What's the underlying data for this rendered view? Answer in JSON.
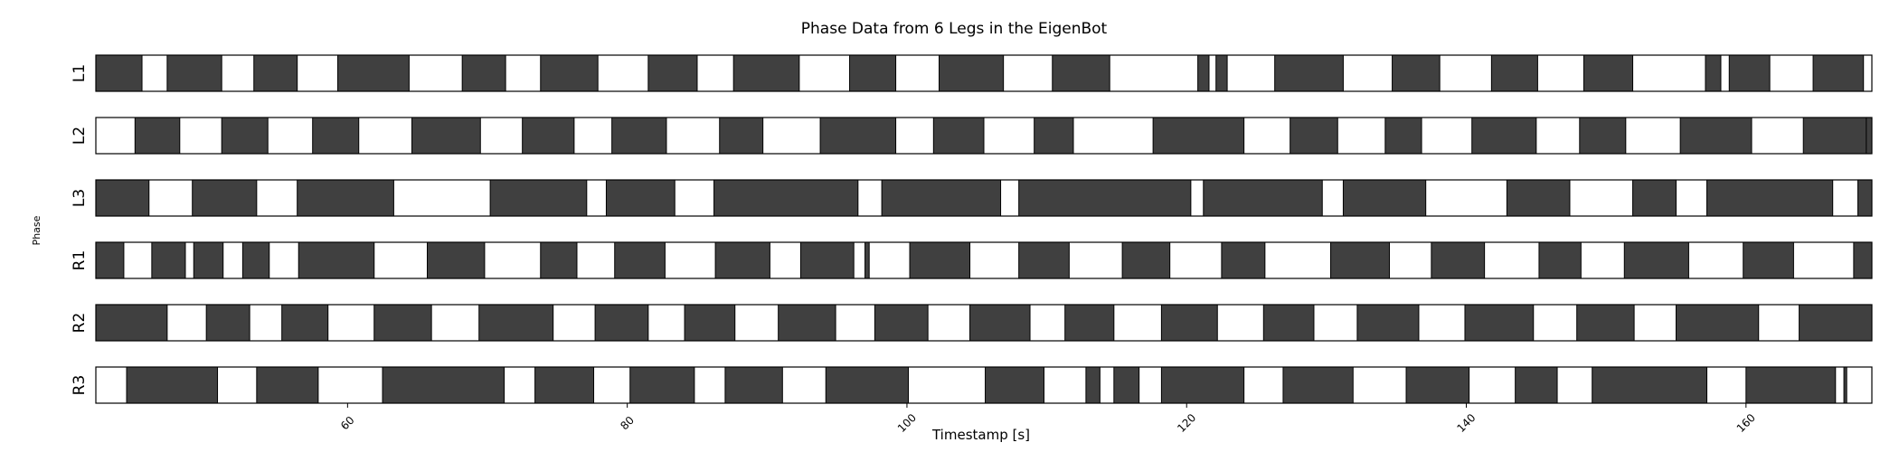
{
  "chart_data": {
    "type": "broken_barh",
    "title": "Phase Data from 6 Legs in the EigenBot",
    "xlabel": "Timestamp [s]",
    "ylabel": "Phase",
    "xlim": [
      42,
      169
    ],
    "xticks": [
      60,
      80,
      100,
      120,
      140,
      160
    ],
    "stance_color": "#404040",
    "swing_color": "#ffffff",
    "rows": [
      {
        "name": "L1",
        "stance": [
          [
            42.0,
            45.3
          ],
          [
            47.1,
            51.0
          ],
          [
            53.3,
            56.4
          ],
          [
            59.3,
            64.4
          ],
          [
            68.2,
            71.3
          ],
          [
            73.8,
            77.9
          ],
          [
            81.5,
            85.0
          ],
          [
            87.6,
            92.3
          ],
          [
            95.9,
            99.2
          ],
          [
            102.3,
            106.9
          ],
          [
            110.4,
            114.5
          ],
          [
            120.8,
            121.6
          ],
          [
            122.1,
            122.9
          ],
          [
            126.3,
            131.2
          ],
          [
            134.7,
            138.1
          ],
          [
            141.8,
            145.1
          ],
          [
            148.4,
            151.9
          ],
          [
            157.1,
            158.2
          ],
          [
            158.8,
            161.7
          ],
          [
            164.8,
            168.4
          ]
        ]
      },
      {
        "name": "L2",
        "stance": [
          [
            44.8,
            48.0
          ],
          [
            51.0,
            54.3
          ],
          [
            57.5,
            60.8
          ],
          [
            64.6,
            69.5
          ],
          [
            72.5,
            76.2
          ],
          [
            78.9,
            82.8
          ],
          [
            86.6,
            89.7
          ],
          [
            93.8,
            99.2
          ],
          [
            101.9,
            105.5
          ],
          [
            109.1,
            111.9
          ],
          [
            117.6,
            124.1
          ],
          [
            127.4,
            130.8
          ],
          [
            134.2,
            136.8
          ],
          [
            140.4,
            145.0
          ],
          [
            148.1,
            151.4
          ],
          [
            155.3,
            160.4
          ],
          [
            164.1,
            169.0
          ],
          [
            168.6,
            169.0
          ]
        ]
      },
      {
        "name": "L3",
        "stance": [
          [
            42.0,
            45.8
          ],
          [
            48.9,
            53.5
          ],
          [
            56.4,
            63.3
          ],
          [
            70.2,
            77.1
          ],
          [
            78.5,
            83.4
          ],
          [
            86.2,
            96.5
          ],
          [
            98.2,
            106.7
          ],
          [
            108.0,
            120.3
          ],
          [
            121.2,
            129.7
          ],
          [
            131.2,
            137.1
          ],
          [
            142.9,
            147.4
          ],
          [
            151.9,
            155.0
          ],
          [
            157.2,
            166.2
          ],
          [
            168.0,
            169.0
          ]
        ]
      },
      {
        "name": "R1",
        "stance": [
          [
            42.0,
            44.0
          ],
          [
            46.0,
            48.4
          ],
          [
            49.0,
            51.1
          ],
          [
            52.5,
            54.4
          ],
          [
            56.5,
            61.9
          ],
          [
            65.7,
            69.8
          ],
          [
            73.8,
            76.4
          ],
          [
            79.1,
            82.7
          ],
          [
            86.3,
            90.2
          ],
          [
            92.4,
            96.2
          ],
          [
            97.0,
            97.3
          ],
          [
            100.2,
            104.5
          ],
          [
            108.0,
            111.6
          ],
          [
            115.4,
            118.8
          ],
          [
            122.5,
            125.6
          ],
          [
            130.3,
            134.5
          ],
          [
            137.5,
            141.3
          ],
          [
            145.2,
            148.2
          ],
          [
            151.3,
            155.9
          ],
          [
            159.8,
            163.4
          ],
          [
            167.7,
            169.0
          ]
        ]
      },
      {
        "name": "R2",
        "stance": [
          [
            42.0,
            47.1
          ],
          [
            49.9,
            53.0
          ],
          [
            55.3,
            58.6
          ],
          [
            61.9,
            66.0
          ],
          [
            69.4,
            74.7
          ],
          [
            77.7,
            81.5
          ],
          [
            84.1,
            87.7
          ],
          [
            90.8,
            94.9
          ],
          [
            97.7,
            101.5
          ],
          [
            104.5,
            108.8
          ],
          [
            111.3,
            114.8
          ],
          [
            118.2,
            122.2
          ],
          [
            125.5,
            129.1
          ],
          [
            132.2,
            136.6
          ],
          [
            139.9,
            144.8
          ],
          [
            147.9,
            152.0
          ],
          [
            155.0,
            160.9
          ],
          [
            163.8,
            169.0
          ]
        ]
      },
      {
        "name": "R3",
        "stance": [
          [
            44.2,
            50.7
          ],
          [
            53.5,
            57.9
          ],
          [
            62.5,
            71.2
          ],
          [
            73.4,
            77.6
          ],
          [
            80.2,
            84.8
          ],
          [
            87.0,
            91.1
          ],
          [
            94.2,
            100.1
          ],
          [
            105.6,
            109.8
          ],
          [
            112.8,
            113.8
          ],
          [
            114.8,
            116.6
          ],
          [
            118.2,
            124.1
          ],
          [
            126.9,
            131.9
          ],
          [
            135.7,
            140.2
          ],
          [
            143.5,
            146.5
          ],
          [
            149.0,
            157.2
          ],
          [
            160.0,
            166.4
          ],
          [
            167.0,
            167.2
          ]
        ]
      }
    ]
  }
}
